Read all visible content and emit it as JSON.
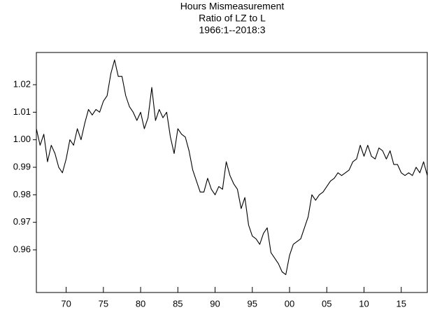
{
  "chart_data": {
    "type": "line",
    "title": "Hours Mismeasurement",
    "subtitle": [
      "Ratio of LZ to L",
      "1966:1--2018:3"
    ],
    "x": [
      1966,
      1966.5,
      1967,
      1967.5,
      1968,
      1968.5,
      1969,
      1969.5,
      1970,
      1970.5,
      1971,
      1971.5,
      1972,
      1972.5,
      1973,
      1973.5,
      1974,
      1974.5,
      1975,
      1975.5,
      1976,
      1976.5,
      1977,
      1977.5,
      1978,
      1978.5,
      1979,
      1979.5,
      1980,
      1980.5,
      1981,
      1981.5,
      1982,
      1982.5,
      1983,
      1983.5,
      1984,
      1984.5,
      1985,
      1985.5,
      1986,
      1986.5,
      1987,
      1987.5,
      1988,
      1988.5,
      1989,
      1989.5,
      1990,
      1990.5,
      1991,
      1991.5,
      1992,
      1992.5,
      1993,
      1993.5,
      1994,
      1994.5,
      1995,
      1995.5,
      1996,
      1996.5,
      1997,
      1997.5,
      1998,
      1998.5,
      1999,
      1999.5,
      2000,
      2000.5,
      2001,
      2001.5,
      2002,
      2002.5,
      2003,
      2003.5,
      2004,
      2004.5,
      2005,
      2005.5,
      2006,
      2006.5,
      2007,
      2007.5,
      2008,
      2008.5,
      2009,
      2009.5,
      2010,
      2010.5,
      2011,
      2011.5,
      2012,
      2012.5,
      2013,
      2013.5,
      2014,
      2014.5,
      2015,
      2015.5,
      2016,
      2016.5,
      2017,
      2017.5,
      2018,
      2018.5
    ],
    "values": [
      1.004,
      0.998,
      1.002,
      0.992,
      0.998,
      0.995,
      0.99,
      0.988,
      0.993,
      1.0,
      0.998,
      1.004,
      1.0,
      1.006,
      1.011,
      1.009,
      1.011,
      1.01,
      1.014,
      1.016,
      1.024,
      1.029,
      1.023,
      1.023,
      1.016,
      1.012,
      1.01,
      1.007,
      1.01,
      1.004,
      1.008,
      1.019,
      1.007,
      1.011,
      1.008,
      1.01,
      1.001,
      0.995,
      1.004,
      1.002,
      1.001,
      0.996,
      0.989,
      0.985,
      0.981,
      0.981,
      0.986,
      0.982,
      0.98,
      0.983,
      0.982,
      0.992,
      0.987,
      0.984,
      0.982,
      0.975,
      0.979,
      0.969,
      0.965,
      0.964,
      0.962,
      0.966,
      0.968,
      0.959,
      0.957,
      0.955,
      0.952,
      0.951,
      0.958,
      0.962,
      0.963,
      0.964,
      0.968,
      0.972,
      0.98,
      0.978,
      0.98,
      0.981,
      0.983,
      0.985,
      0.986,
      0.988,
      0.987,
      0.988,
      0.989,
      0.992,
      0.993,
      0.998,
      0.994,
      0.998,
      0.994,
      0.993,
      0.997,
      0.996,
      0.993,
      0.996,
      0.991,
      0.991,
      0.988,
      0.987,
      0.988,
      0.987,
      0.99,
      0.988,
      0.992,
      0.987
    ],
    "color": "#000000",
    "xlim": [
      1966,
      2018.5
    ],
    "xticks": [
      {
        "value": 1970,
        "label": "70"
      },
      {
        "value": 1975,
        "label": "75"
      },
      {
        "value": 1980,
        "label": "80"
      },
      {
        "value": 1985,
        "label": "85"
      },
      {
        "value": 1990,
        "label": "90"
      },
      {
        "value": 1995,
        "label": "95"
      },
      {
        "value": 2000,
        "label": "00"
      },
      {
        "value": 2005,
        "label": "05"
      },
      {
        "value": 2010,
        "label": "10"
      },
      {
        "value": 2015,
        "label": "15"
      }
    ],
    "ylim": [
      0.9445,
      1.0317
    ],
    "yticks": [
      0.96,
      0.97,
      0.98,
      0.99,
      {
        "value": 1,
        "label": "1.00"
      },
      1.01,
      1.02
    ],
    "grid": false
  }
}
